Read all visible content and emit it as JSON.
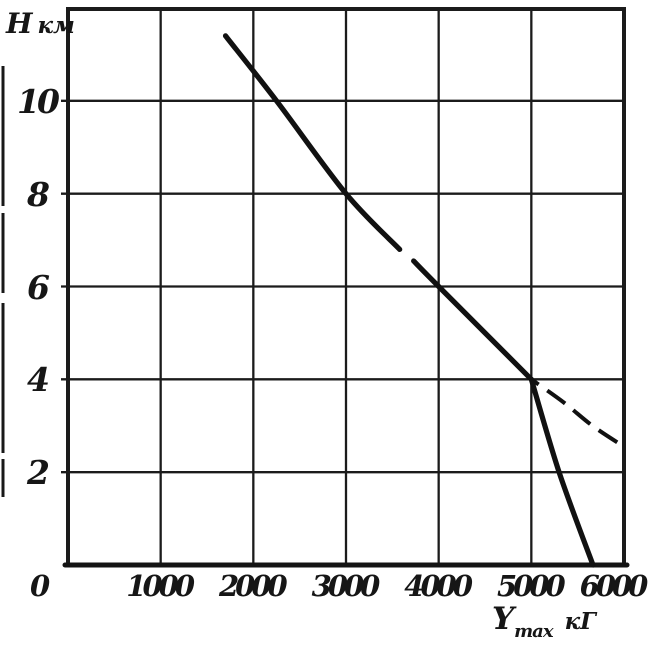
{
  "figure": {
    "background": "#ffffff",
    "ink_color": "#161616",
    "y_axis_label_symbol": "Н",
    "y_axis_label_unit": "км",
    "origin_label": "0",
    "x_axis_title": {
      "symbol": "Y",
      "subscript": "max",
      "unit": "кГ"
    },
    "y_tick_labels": [
      "10",
      "8",
      "6",
      "4",
      "2"
    ],
    "x_tick_labels": [
      "1000",
      "2000",
      "3000",
      "4000",
      "5000",
      "6000"
    ]
  },
  "chart_data": {
    "type": "line",
    "title": "",
    "xlabel": "Ymax кГ",
    "ylabel": "Н км",
    "xlim": [
      0,
      6000
    ],
    "ylim": [
      0,
      12
    ],
    "grid": true,
    "legend": "none",
    "x_ticks": [
      0,
      1000,
      2000,
      3000,
      4000,
      5000,
      6000
    ],
    "y_ticks": [
      0,
      2,
      4,
      6,
      8,
      10
    ],
    "series": [
      {
        "name": "altitude-vs-lift-upper-solid",
        "style": "solid",
        "points": [
          [
            1700,
            11.4
          ],
          [
            2250,
            10.0
          ],
          [
            3000,
            8.0
          ],
          [
            3580,
            6.8
          ]
        ]
      },
      {
        "name": "altitude-vs-lift-lower-solid",
        "style": "solid",
        "points": [
          [
            3730,
            6.55
          ],
          [
            4000,
            6.0
          ],
          [
            5000,
            4.0
          ]
        ]
      },
      {
        "name": "steep-descent-branch-solid",
        "style": "solid",
        "points": [
          [
            5000,
            4.0
          ],
          [
            5300,
            2.0
          ],
          [
            5665,
            0.0
          ]
        ]
      },
      {
        "name": "extrapolated-branch-dashed",
        "style": "dashed",
        "points": [
          [
            5000,
            4.0
          ],
          [
            5350,
            3.5
          ],
          [
            5660,
            3.0
          ],
          [
            6000,
            2.55
          ]
        ]
      }
    ]
  }
}
